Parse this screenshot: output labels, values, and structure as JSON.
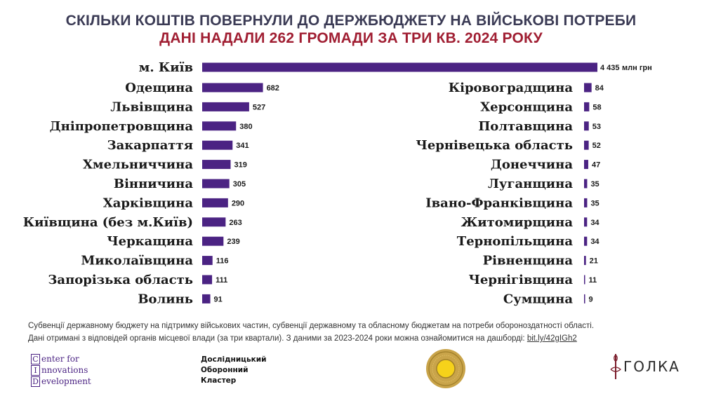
{
  "header": {
    "title": "СКІЛЬКИ КОШТІВ ПОВЕРНУЛИ ДО ДЕРЖБЮДЖЕТУ НА ВІЙСЬКОВІ ПОТРЕБИ",
    "subtitle": "ДАНІ НАДАЛИ 262 ГРОМАДИ ЗА ТРИ КВ. 2024 РОКУ"
  },
  "colors": {
    "bar": "#4b2383",
    "title": "#3b3b55",
    "subtitle": "#a01e32"
  },
  "chart_data": {
    "type": "bar",
    "orientation": "horizontal",
    "title": "СКІЛЬКИ КОШТІВ ПОВЕРНУЛИ ДО ДЕРЖБЮДЖЕТУ НА ВІЙСЬКОВІ ПОТРЕБИ",
    "subtitle": "ДАНІ НАДАЛИ 262 ГРОМАДИ ЗА ТРИ КВ. 2024 РОКУ",
    "unit": "млн грн",
    "top": {
      "category": "м. Київ",
      "value": 4435,
      "label": "4 435"
    },
    "left_column": [
      {
        "category": "Одещина",
        "value": 682
      },
      {
        "category": "Львівщина",
        "value": 527
      },
      {
        "category": "Дніпропетровщина",
        "value": 380
      },
      {
        "category": "Закарпаття",
        "value": 341
      },
      {
        "category": "Хмельниччина",
        "value": 319
      },
      {
        "category": "Вінничина",
        "value": 305
      },
      {
        "category": "Харківщина",
        "value": 290
      },
      {
        "category": "Київщина (без м.Київ)",
        "value": 263
      },
      {
        "category": "Черкащина",
        "value": 239
      },
      {
        "category": "Миколаївщина",
        "value": 116
      },
      {
        "category": "Запорізька область",
        "value": 111
      },
      {
        "category": "Волинь",
        "value": 91
      }
    ],
    "right_column": [
      {
        "category": "Кіровоградщина",
        "value": 84
      },
      {
        "category": "Херсонщина",
        "value": 58
      },
      {
        "category": "Полтавщина",
        "value": 53
      },
      {
        "category": "Чернівецька область",
        "value": 52
      },
      {
        "category": "Донеччина",
        "value": 47
      },
      {
        "category": "Луганщина",
        "value": 35
      },
      {
        "category": "Івано-Франківщина",
        "value": 35
      },
      {
        "category": "Житомирщина",
        "value": 34
      },
      {
        "category": "Тернопільщина",
        "value": 34
      },
      {
        "category": "Рівненщина",
        "value": 21
      },
      {
        "category": "Чернігівщина",
        "value": 11
      },
      {
        "category": "Сумщина",
        "value": 9
      }
    ]
  },
  "notes": {
    "line1": "Субвенції державному бюджету на підтримку військових частин, субвенції державному та обласному бюджетам на потреби обороноздатності області.",
    "line2_text": "Дані отримані з відповідей органів місцевої влади (за три квартали). З даними за 2023-2024 роки можна ознайомитися на дашборді: ",
    "link": "bit.ly/42gIGh2"
  },
  "logos": {
    "cid": {
      "l1": "enter for",
      "l2": "nnovations",
      "l3": "evelopment",
      "c": "C",
      "i": "I",
      "d": "D"
    },
    "drk": {
      "l1": "Дослідницький",
      "l2": "Оборонний",
      "l3": "Кластер"
    },
    "golka": "ГОЛКА"
  }
}
